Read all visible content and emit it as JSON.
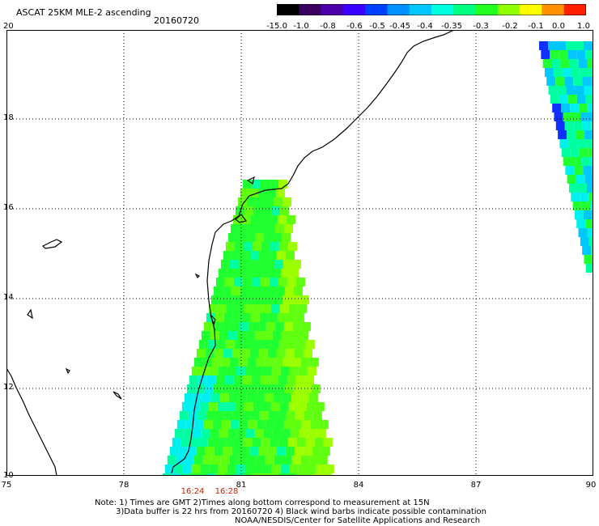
{
  "header": {
    "title": "ASCAT 25KM MLE-2 ascending",
    "date": "20160720"
  },
  "colorbar": {
    "labels": [
      "-15.0",
      "-1.0",
      "-0.8",
      "-0.6",
      "-0.5",
      "-0.45",
      "-0.4",
      "-0.35",
      "-0.3",
      "-0.2",
      "-0.1",
      "0.0",
      "1.0"
    ],
    "colors": [
      "#000000",
      "#3a0060",
      "#4b00a8",
      "#3a00ff",
      "#0040ff",
      "#0090ff",
      "#00c8ff",
      "#00ffe0",
      "#00ff80",
      "#20ff20",
      "#90ff00",
      "#ffff00",
      "#ff9000",
      "#ff2000"
    ]
  },
  "axes": {
    "lat_labels": [
      "20",
      "18",
      "16",
      "14",
      "12",
      "10"
    ],
    "lon_labels": [
      "75",
      "78",
      "81",
      "84",
      "87",
      "90"
    ]
  },
  "times": [
    "16:24",
    "16:28"
  ],
  "notes": {
    "line1": "Note: 1) Times are GMT 2)Times along bottom correspond to measurement at 15N",
    "line2": "3)Data buffer is 22 hrs from 20160720 4) Black wind barbs indicate possible contamination",
    "line3": "NOAA/NESDIS/Center for Satellite Applications and Research"
  }
}
